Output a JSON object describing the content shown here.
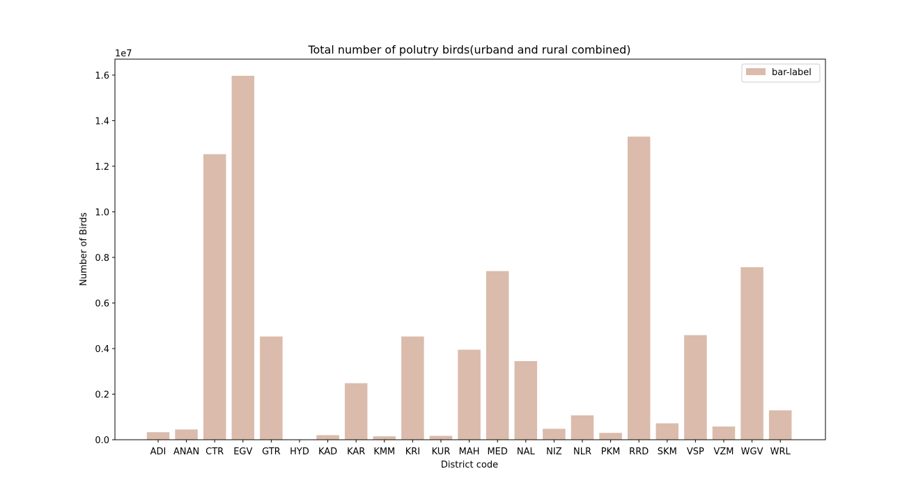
{
  "chart_data": {
    "type": "bar",
    "title": "Total number of polutry birds(urband and rural combined)",
    "xlabel": "District code",
    "ylabel": "Number of Birds",
    "y_offset_label": "1e7",
    "y_scale": 10000000,
    "ylim": [
      0,
      16700000
    ],
    "yticks": [
      0,
      2000000,
      4000000,
      6000000,
      8000000,
      10000000,
      12000000,
      14000000,
      16000000
    ],
    "ytick_labels": [
      "0.0",
      "0.2",
      "0.4",
      "0.6",
      "0.8",
      "1.0",
      "1.2",
      "1.4",
      "1.6"
    ],
    "grid": false,
    "legend_position": "top-right",
    "bar_color": "#dbbbab",
    "categories": [
      "ADI",
      "ANAN",
      "CTR",
      "EGV",
      "GTR",
      "HYD",
      "KAD",
      "KAR",
      "KMM",
      "KRI",
      "KUR",
      "MAH",
      "MED",
      "NAL",
      "NIZ",
      "NLR",
      "PKM",
      "RRD",
      "SKM",
      "VSP",
      "VZM",
      "WGV",
      "WRL"
    ],
    "series": [
      {
        "name": "bar-label",
        "values": [
          330000,
          450000,
          12530000,
          15970000,
          4530000,
          0,
          200000,
          2480000,
          150000,
          4530000,
          170000,
          3950000,
          7400000,
          3450000,
          480000,
          1070000,
          300000,
          13300000,
          720000,
          4590000,
          580000,
          7570000,
          1290000
        ]
      }
    ]
  }
}
